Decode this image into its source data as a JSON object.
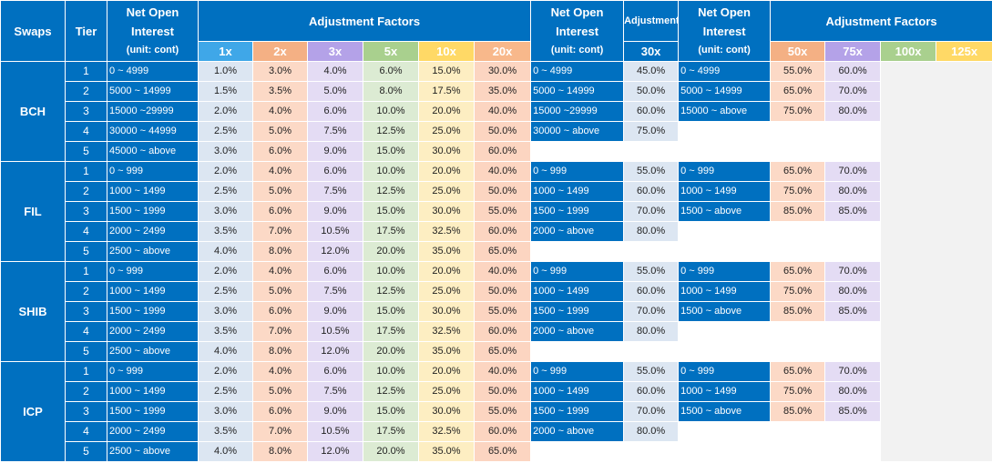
{
  "headers": {
    "swaps": "Swaps",
    "tier": "Tier",
    "noi_line1": "Net Open",
    "noi_line2": "Interest",
    "noi_unit": "(unit: cont)",
    "adj_factors": "Adjustment Factors",
    "adj_factors_small": "Adjustment Factors",
    "leverage_a": [
      "1x",
      "2x",
      "3x",
      "5x",
      "10x",
      "20x"
    ],
    "leverage_b": "30x",
    "leverage_c": [
      "50x",
      "75x",
      "100x",
      "125x"
    ]
  },
  "colors": {
    "header_blue": "#0070c0",
    "lev_1x": "#3fa7e8",
    "lev_2x": "#f4b084",
    "lev_3x": "#b4a2e8",
    "lev_5x": "#a9d08e",
    "lev_10x": "#ffd966",
    "lev_20x": "#f8b88b"
  },
  "groups": [
    {
      "name": "BCH",
      "tiers": [
        {
          "tier": "1",
          "noi_a": "0 ~ 4999",
          "factors_a": [
            "1.0%",
            "3.0%",
            "4.0%",
            "6.0%",
            "15.0%",
            "30.0%"
          ],
          "noi_b": "0 ~ 4999",
          "factor_b": "45.0%",
          "noi_c": "0 ~ 4999",
          "factors_c": [
            "55.0%",
            "60.0%"
          ]
        },
        {
          "tier": "2",
          "noi_a": "5000 ~ 14999",
          "factors_a": [
            "1.5%",
            "3.5%",
            "5.0%",
            "8.0%",
            "17.5%",
            "35.0%"
          ],
          "noi_b": "5000 ~ 14999",
          "factor_b": "50.0%",
          "noi_c": "5000 ~ 14999",
          "factors_c": [
            "65.0%",
            "70.0%"
          ]
        },
        {
          "tier": "3",
          "noi_a": "15000 ~29999",
          "factors_a": [
            "2.0%",
            "4.0%",
            "6.0%",
            "10.0%",
            "20.0%",
            "40.0%"
          ],
          "noi_b": "15000 ~29999",
          "factor_b": "60.0%",
          "noi_c": "15000 ~ above",
          "factors_c": [
            "75.0%",
            "80.0%"
          ]
        },
        {
          "tier": "4",
          "noi_a": "30000 ~ 44999",
          "factors_a": [
            "2.5%",
            "5.0%",
            "7.5%",
            "12.5%",
            "25.0%",
            "50.0%"
          ],
          "noi_b": "30000 ~ above",
          "factor_b": "75.0%",
          "noi_c": "",
          "factors_c": [
            "",
            ""
          ]
        },
        {
          "tier": "5",
          "noi_a": "45000 ~ above",
          "factors_a": [
            "3.0%",
            "6.0%",
            "9.0%",
            "15.0%",
            "30.0%",
            "60.0%"
          ],
          "noi_b": "",
          "factor_b": "",
          "noi_c": "",
          "factors_c": [
            "",
            ""
          ]
        }
      ]
    },
    {
      "name": "FIL",
      "tiers": [
        {
          "tier": "1",
          "noi_a": "0 ~ 999",
          "factors_a": [
            "2.0%",
            "4.0%",
            "6.0%",
            "10.0%",
            "20.0%",
            "40.0%"
          ],
          "noi_b": "0 ~ 999",
          "factor_b": "55.0%",
          "noi_c": "0 ~ 999",
          "factors_c": [
            "65.0%",
            "70.0%"
          ]
        },
        {
          "tier": "2",
          "noi_a": "1000 ~ 1499",
          "factors_a": [
            "2.5%",
            "5.0%",
            "7.5%",
            "12.5%",
            "25.0%",
            "50.0%"
          ],
          "noi_b": "1000 ~ 1499",
          "factor_b": "60.0%",
          "noi_c": "1000 ~ 1499",
          "factors_c": [
            "75.0%",
            "80.0%"
          ]
        },
        {
          "tier": "3",
          "noi_a": "1500 ~ 1999",
          "factors_a": [
            "3.0%",
            "6.0%",
            "9.0%",
            "15.0%",
            "30.0%",
            "55.0%"
          ],
          "noi_b": "1500 ~ 1999",
          "factor_b": "70.0%",
          "noi_c": "1500 ~ above",
          "factors_c": [
            "85.0%",
            "85.0%"
          ]
        },
        {
          "tier": "4",
          "noi_a": "2000 ~ 2499",
          "factors_a": [
            "3.5%",
            "7.0%",
            "10.5%",
            "17.5%",
            "32.5%",
            "60.0%"
          ],
          "noi_b": "2000 ~ above",
          "factor_b": "80.0%",
          "noi_c": "",
          "factors_c": [
            "",
            ""
          ]
        },
        {
          "tier": "5",
          "noi_a": "2500 ~ above",
          "factors_a": [
            "4.0%",
            "8.0%",
            "12.0%",
            "20.0%",
            "35.0%",
            "65.0%"
          ],
          "noi_b": "",
          "factor_b": "",
          "noi_c": "",
          "factors_c": [
            "",
            ""
          ]
        }
      ]
    },
    {
      "name": "SHIB",
      "tiers": [
        {
          "tier": "1",
          "noi_a": "0 ~ 999",
          "factors_a": [
            "2.0%",
            "4.0%",
            "6.0%",
            "10.0%",
            "20.0%",
            "40.0%"
          ],
          "noi_b": "0 ~ 999",
          "factor_b": "55.0%",
          "noi_c": "0 ~ 999",
          "factors_c": [
            "65.0%",
            "70.0%"
          ]
        },
        {
          "tier": "2",
          "noi_a": "1000 ~ 1499",
          "factors_a": [
            "2.5%",
            "5.0%",
            "7.5%",
            "12.5%",
            "25.0%",
            "50.0%"
          ],
          "noi_b": "1000 ~ 1499",
          "factor_b": "60.0%",
          "noi_c": "1000 ~ 1499",
          "factors_c": [
            "75.0%",
            "80.0%"
          ]
        },
        {
          "tier": "3",
          "noi_a": "1500 ~ 1999",
          "factors_a": [
            "3.0%",
            "6.0%",
            "9.0%",
            "15.0%",
            "30.0%",
            "55.0%"
          ],
          "noi_b": "1500 ~ 1999",
          "factor_b": "70.0%",
          "noi_c": "1500 ~ above",
          "factors_c": [
            "85.0%",
            "85.0%"
          ]
        },
        {
          "tier": "4",
          "noi_a": "2000 ~ 2499",
          "factors_a": [
            "3.5%",
            "7.0%",
            "10.5%",
            "17.5%",
            "32.5%",
            "60.0%"
          ],
          "noi_b": "2000 ~ above",
          "factor_b": "80.0%",
          "noi_c": "",
          "factors_c": [
            "",
            ""
          ]
        },
        {
          "tier": "5",
          "noi_a": "2500 ~ above",
          "factors_a": [
            "4.0%",
            "8.0%",
            "12.0%",
            "20.0%",
            "35.0%",
            "65.0%"
          ],
          "noi_b": "",
          "factor_b": "",
          "noi_c": "",
          "factors_c": [
            "",
            ""
          ]
        }
      ]
    },
    {
      "name": "ICP",
      "tiers": [
        {
          "tier": "1",
          "noi_a": "0 ~ 999",
          "factors_a": [
            "2.0%",
            "4.0%",
            "6.0%",
            "10.0%",
            "20.0%",
            "40.0%"
          ],
          "noi_b": "0 ~ 999",
          "factor_b": "55.0%",
          "noi_c": "0 ~ 999",
          "factors_c": [
            "65.0%",
            "70.0%"
          ]
        },
        {
          "tier": "2",
          "noi_a": "1000 ~ 1499",
          "factors_a": [
            "2.5%",
            "5.0%",
            "7.5%",
            "12.5%",
            "25.0%",
            "50.0%"
          ],
          "noi_b": "1000 ~ 1499",
          "factor_b": "60.0%",
          "noi_c": "1000 ~ 1499",
          "factors_c": [
            "75.0%",
            "80.0%"
          ]
        },
        {
          "tier": "3",
          "noi_a": "1500 ~ 1999",
          "factors_a": [
            "3.0%",
            "6.0%",
            "9.0%",
            "15.0%",
            "30.0%",
            "55.0%"
          ],
          "noi_b": "1500 ~ 1999",
          "factor_b": "70.0%",
          "noi_c": "1500 ~ above",
          "factors_c": [
            "85.0%",
            "85.0%"
          ]
        },
        {
          "tier": "4",
          "noi_a": "2000 ~ 2499",
          "factors_a": [
            "3.5%",
            "7.0%",
            "10.5%",
            "17.5%",
            "32.5%",
            "60.0%"
          ],
          "noi_b": "2000 ~ above",
          "factor_b": "80.0%",
          "noi_c": "",
          "factors_c": [
            "",
            ""
          ]
        },
        {
          "tier": "5",
          "noi_a": "2500 ~ above",
          "factors_a": [
            "4.0%",
            "8.0%",
            "12.0%",
            "20.0%",
            "35.0%",
            "65.0%"
          ],
          "noi_b": "",
          "factor_b": "",
          "noi_c": "",
          "factors_c": [
            "",
            ""
          ]
        }
      ]
    }
  ]
}
